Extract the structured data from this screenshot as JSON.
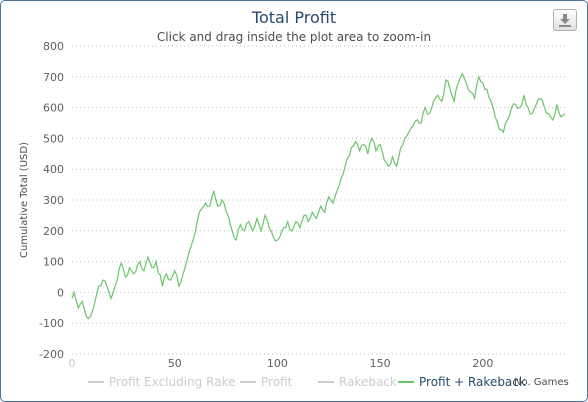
{
  "header": {
    "title": "Total Profit",
    "subtitle": "Click and drag inside the plot area to zoom-in"
  },
  "toolbar": {
    "export_icon": "download-icon"
  },
  "colors": {
    "series_active": "#6cc46c",
    "legend_inactive": "#cccccc",
    "legend_active_text": "#274b6d",
    "grid": "#c0c0c0",
    "axis_text": "#606060",
    "zero_tick": "#cccccc"
  },
  "chart_data": {
    "type": "line",
    "ylabel": "Cumulative Total (USD)",
    "xlabel": "No. Games",
    "xlim": [
      0,
      240
    ],
    "ylim": [
      -200,
      800
    ],
    "x_ticks": [
      0,
      50,
      100,
      150,
      200
    ],
    "y_ticks": [
      -200,
      -100,
      0,
      100,
      200,
      300,
      400,
      500,
      600,
      700,
      800
    ],
    "grid": "dotted horizontal",
    "legend_position": "bottom",
    "legend": [
      {
        "name": "Profit Excluding Rake",
        "active": false
      },
      {
        "name": "Profit",
        "active": false
      },
      {
        "name": "Rakeback",
        "active": false
      },
      {
        "name": "Profit + Rakeback",
        "active": true
      }
    ],
    "series": [
      {
        "name": "Profit + Rakeback",
        "keypoints": [
          [
            0,
            -20
          ],
          [
            1,
            0
          ],
          [
            3,
            -50
          ],
          [
            5,
            -30
          ],
          [
            6,
            -55
          ],
          [
            8,
            -85
          ],
          [
            10,
            -60
          ],
          [
            13,
            20
          ],
          [
            15,
            40
          ],
          [
            17,
            20
          ],
          [
            19,
            -20
          ],
          [
            21,
            20
          ],
          [
            24,
            95
          ],
          [
            26,
            50
          ],
          [
            28,
            80
          ],
          [
            30,
            60
          ],
          [
            33,
            100
          ],
          [
            35,
            70
          ],
          [
            37,
            115
          ],
          [
            39,
            80
          ],
          [
            41,
            100
          ],
          [
            44,
            20
          ],
          [
            46,
            60
          ],
          [
            48,
            40
          ],
          [
            50,
            70
          ],
          [
            52,
            20
          ],
          [
            55,
            80
          ],
          [
            58,
            150
          ],
          [
            61,
            230
          ],
          [
            63,
            270
          ],
          [
            65,
            290
          ],
          [
            67,
            280
          ],
          [
            69,
            330
          ],
          [
            71,
            280
          ],
          [
            73,
            300
          ],
          [
            76,
            250
          ],
          [
            78,
            200
          ],
          [
            80,
            170
          ],
          [
            82,
            220
          ],
          [
            84,
            200
          ],
          [
            86,
            230
          ],
          [
            88,
            200
          ],
          [
            90,
            240
          ],
          [
            92,
            200
          ],
          [
            94,
            250
          ],
          [
            96,
            210
          ],
          [
            98,
            180
          ],
          [
            100,
            170
          ],
          [
            103,
            210
          ],
          [
            105,
            230
          ],
          [
            107,
            200
          ],
          [
            109,
            230
          ],
          [
            111,
            210
          ],
          [
            113,
            250
          ],
          [
            115,
            230
          ],
          [
            117,
            260
          ],
          [
            119,
            240
          ],
          [
            121,
            280
          ],
          [
            123,
            260
          ],
          [
            125,
            310
          ],
          [
            127,
            290
          ],
          [
            129,
            330
          ],
          [
            131,
            370
          ],
          [
            133,
            410
          ],
          [
            136,
            470
          ],
          [
            138,
            490
          ],
          [
            140,
            460
          ],
          [
            142,
            480
          ],
          [
            144,
            450
          ],
          [
            146,
            500
          ],
          [
            148,
            460
          ],
          [
            150,
            480
          ],
          [
            152,
            430
          ],
          [
            154,
            410
          ],
          [
            156,
            440
          ],
          [
            158,
            410
          ],
          [
            160,
            470
          ],
          [
            162,
            500
          ],
          [
            164,
            520
          ],
          [
            166,
            540
          ],
          [
            168,
            560
          ],
          [
            170,
            550
          ],
          [
            172,
            600
          ],
          [
            174,
            580
          ],
          [
            176,
            620
          ],
          [
            178,
            640
          ],
          [
            180,
            620
          ],
          [
            182,
            690
          ],
          [
            184,
            660
          ],
          [
            186,
            620
          ],
          [
            188,
            680
          ],
          [
            190,
            710
          ],
          [
            192,
            680
          ],
          [
            194,
            650
          ],
          [
            196,
            630
          ],
          [
            198,
            700
          ],
          [
            200,
            680
          ],
          [
            202,
            660
          ],
          [
            204,
            620
          ],
          [
            206,
            570
          ],
          [
            208,
            530
          ],
          [
            210,
            520
          ],
          [
            212,
            560
          ],
          [
            214,
            600
          ],
          [
            216,
            610
          ],
          [
            218,
            600
          ],
          [
            220,
            640
          ],
          [
            222,
            600
          ],
          [
            224,
            580
          ],
          [
            226,
            610
          ],
          [
            228,
            630
          ],
          [
            230,
            600
          ],
          [
            232,
            580
          ],
          [
            234,
            560
          ],
          [
            236,
            610
          ],
          [
            238,
            570
          ],
          [
            240,
            580
          ]
        ]
      }
    ]
  }
}
